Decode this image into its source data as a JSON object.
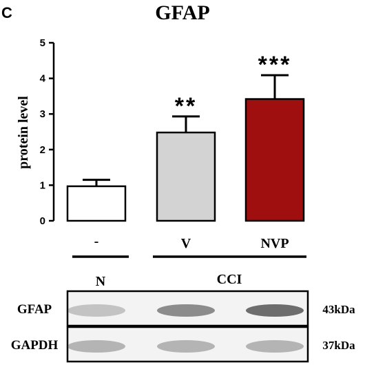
{
  "panel_label": "C",
  "chart_data": {
    "type": "bar",
    "title": "GFAP",
    "ylabel": "protein level",
    "xlabel": "",
    "ylim": [
      0,
      5
    ],
    "yticks": [
      "0",
      "1",
      "2",
      "3",
      "4",
      "5"
    ],
    "categories": [
      "-",
      "V",
      "NVP"
    ],
    "values": [
      0.97,
      2.48,
      3.42
    ],
    "errors": [
      0.18,
      0.45,
      0.67
    ],
    "significance": [
      "",
      "**",
      "***"
    ],
    "colors": [
      "#ffffff",
      "#d3d3d3",
      "#a00f0f"
    ],
    "grid": false,
    "legend": "none"
  },
  "groups": [
    {
      "label": "N"
    },
    {
      "label": "CCI"
    }
  ],
  "blot": {
    "rows": [
      {
        "protein": "GFAP",
        "size": "43kDa",
        "band_intensity": [
          0.3,
          0.65,
          0.85
        ]
      },
      {
        "protein": "GAPDH",
        "size": "37kDa",
        "band_intensity": [
          0.4,
          0.4,
          0.4
        ]
      }
    ]
  }
}
